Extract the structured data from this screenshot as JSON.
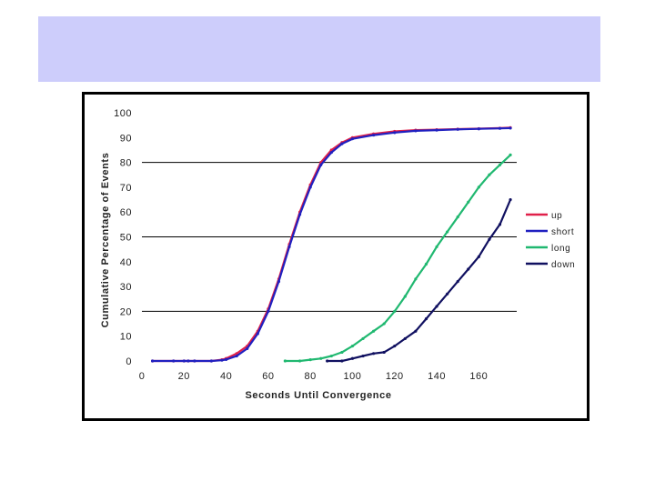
{
  "slide": {
    "banner_color": "#cdcdfb"
  },
  "chart_data": {
    "type": "line",
    "title": "",
    "xlabel": "Seconds Until Convergence",
    "ylabel": "Cumulative Percentage of Events",
    "xlim": [
      0,
      178
    ],
    "ylim": [
      0,
      100
    ],
    "x_ticks": [
      "0",
      "20",
      "40",
      "60",
      "80",
      "100",
      "120",
      "140",
      "160"
    ],
    "y_ticks": [
      "0",
      "10",
      "20",
      "30",
      "40",
      "50",
      "60",
      "70",
      "80",
      "90",
      "100"
    ],
    "gridlines_y": [
      20,
      50,
      80
    ],
    "legend_position": "right",
    "series": [
      {
        "name": "up",
        "color": "#e0204a",
        "x": [
          5,
          15,
          20,
          22,
          25,
          33,
          38,
          40,
          45,
          50,
          55,
          60,
          65,
          70,
          75,
          80,
          85,
          90,
          95,
          100,
          110,
          120,
          130,
          140,
          150,
          160,
          170,
          175
        ],
        "y": [
          0,
          0,
          0,
          0,
          0,
          0,
          0.5,
          1,
          3,
          6,
          12,
          21,
          33,
          47,
          60,
          71,
          80,
          85,
          88,
          90,
          91.5,
          92.5,
          93,
          93.2,
          93.4,
          93.6,
          93.8,
          94
        ]
      },
      {
        "name": "short",
        "color": "#2020c0",
        "x": [
          5,
          15,
          20,
          22,
          25,
          33,
          38,
          40,
          45,
          50,
          55,
          60,
          65,
          70,
          75,
          80,
          85,
          90,
          95,
          100,
          110,
          120,
          130,
          140,
          150,
          160,
          170,
          175
        ],
        "y": [
          0,
          0,
          0,
          0,
          0,
          0,
          0.3,
          0.6,
          2,
          5,
          11,
          20,
          32,
          46,
          59,
          70,
          79,
          84,
          87.5,
          89.5,
          91,
          92,
          92.7,
          93,
          93.3,
          93.5,
          93.7,
          93.8
        ]
      },
      {
        "name": "long",
        "color": "#20b870",
        "x": [
          68,
          75,
          80,
          85,
          90,
          95,
          100,
          105,
          110,
          115,
          120,
          125,
          130,
          135,
          140,
          145,
          150,
          155,
          160,
          165,
          170,
          175
        ],
        "y": [
          0,
          0,
          0.5,
          1,
          2,
          3.5,
          6,
          9,
          12,
          15,
          20,
          26,
          33,
          39,
          46,
          52,
          58,
          64,
          70,
          75,
          79,
          83
        ]
      },
      {
        "name": "down",
        "color": "#101060",
        "x": [
          88,
          95,
          100,
          105,
          110,
          115,
          120,
          125,
          130,
          135,
          140,
          145,
          150,
          155,
          160,
          165,
          170,
          175
        ],
        "y": [
          0,
          0,
          1,
          2,
          3,
          3.5,
          6,
          9,
          12,
          17,
          22,
          27,
          32,
          37,
          42,
          49,
          55,
          65
        ]
      }
    ]
  }
}
